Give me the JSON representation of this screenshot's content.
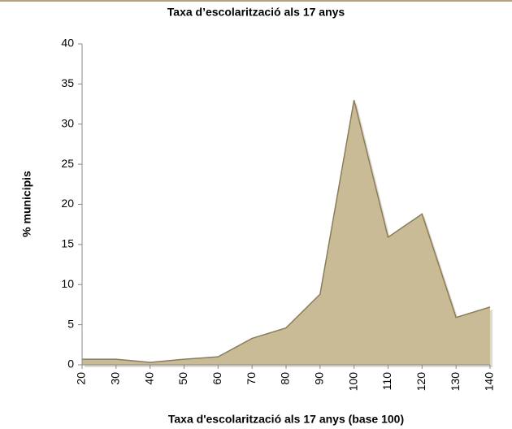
{
  "chart_data": {
    "type": "area",
    "title": "Taxa d’escolarització als 17 anys",
    "x_label": "Taxa d'escolarització als 17 anys (base 100)",
    "y_label": "% municipis",
    "x": [
      20,
      30,
      40,
      50,
      60,
      70,
      80,
      90,
      100,
      110,
      120,
      130,
      140
    ],
    "values": [
      0.7,
      0.7,
      0.3,
      0.7,
      1.0,
      3.3,
      4.6,
      8.8,
      33,
      15.9,
      18.8,
      5.9,
      7.2
    ],
    "color": "#c9bb95",
    "line_color": "#8c7d55",
    "xlim": [
      20,
      140
    ],
    "xticks": [
      20,
      30,
      40,
      50,
      60,
      70,
      80,
      90,
      100,
      110,
      120,
      130,
      140
    ],
    "ylim": [
      0,
      40
    ],
    "yticks": [
      0,
      5,
      10,
      15,
      20,
      25,
      30,
      35,
      40
    ]
  }
}
